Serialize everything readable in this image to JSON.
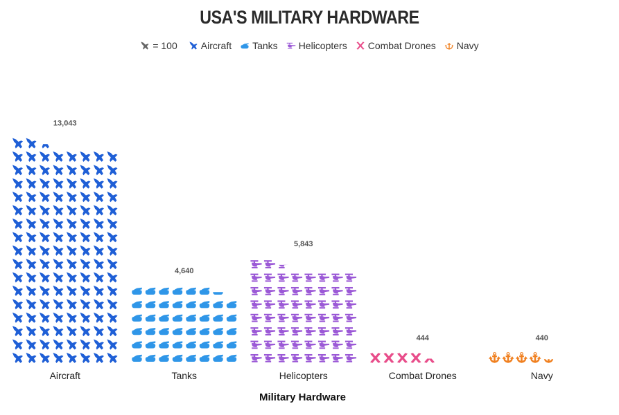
{
  "chart_data": {
    "type": "pictogram",
    "title": "USA'S MILITARY HARDWARE",
    "xlabel": "Military Hardware",
    "unit_per_icon": 100,
    "unit_label": "= 100",
    "icons_per_row": 8,
    "categories": [
      "Aircraft",
      "Tanks",
      "Helicopters",
      "Combat Drones",
      "Navy"
    ],
    "values": [
      13043,
      4640,
      5843,
      444,
      440
    ],
    "value_labels": [
      "13,043",
      "4,640",
      "5,843",
      "444",
      "440"
    ],
    "series": [
      {
        "name": "Aircraft",
        "icon": "jet-icon",
        "color": "#1f5fd6"
      },
      {
        "name": "Tanks",
        "icon": "tank-icon",
        "color": "#2f96e8"
      },
      {
        "name": "Helicopters",
        "icon": "helicopter-icon",
        "color": "#9b59d6"
      },
      {
        "name": "Combat Drones",
        "icon": "drone-icon",
        "color": "#e84d8a"
      },
      {
        "name": "Navy",
        "icon": "anchor-icon",
        "color": "#f08020"
      }
    ],
    "legend_position": "top-center",
    "scale_icon_color": "#666666"
  }
}
